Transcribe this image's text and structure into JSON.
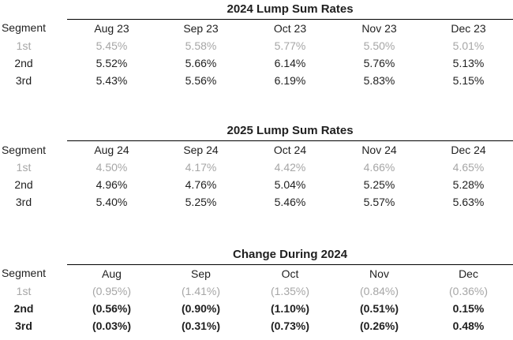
{
  "page": {
    "background": "#ffffff",
    "text_color": "#1f1f1f",
    "muted_row_color": "#a6a6a6",
    "rule_color": "#000000"
  },
  "tables": [
    {
      "title": "2024 Lump Sum Rates",
      "segment_header": "Segment",
      "columns": [
        "Aug 23",
        "Sep 23",
        "Oct 23",
        "Nov 23",
        "Dec 23"
      ],
      "rows": [
        {
          "segment": "1st",
          "style": "muted",
          "values": [
            "5.45%",
            "5.58%",
            "5.77%",
            "5.50%",
            "5.01%"
          ]
        },
        {
          "segment": "2nd",
          "style": "normal",
          "values": [
            "5.52%",
            "5.66%",
            "6.14%",
            "5.76%",
            "5.13%"
          ]
        },
        {
          "segment": "3rd",
          "style": "normal",
          "values": [
            "5.43%",
            "5.56%",
            "6.19%",
            "5.83%",
            "5.15%"
          ]
        }
      ]
    },
    {
      "title": "2025 Lump Sum Rates",
      "segment_header": "Segment",
      "columns": [
        "Aug 24",
        "Sep 24",
        "Oct 24",
        "Nov 24",
        "Dec 24"
      ],
      "rows": [
        {
          "segment": "1st",
          "style": "muted",
          "values": [
            "4.50%",
            "4.17%",
            "4.42%",
            "4.66%",
            "4.65%"
          ]
        },
        {
          "segment": "2nd",
          "style": "normal",
          "values": [
            "4.96%",
            "4.76%",
            "5.04%",
            "5.25%",
            "5.28%"
          ]
        },
        {
          "segment": "3rd",
          "style": "normal",
          "values": [
            "5.40%",
            "5.25%",
            "5.46%",
            "5.57%",
            "5.63%"
          ]
        }
      ]
    },
    {
      "title": "Change During 2024",
      "segment_header": "Segment",
      "columns": [
        "Aug",
        "Sep",
        "Oct",
        "Nov",
        "Dec"
      ],
      "rows": [
        {
          "segment": "1st",
          "style": "muted",
          "values": [
            "(0.95%)",
            "(1.41%)",
            "(1.35%)",
            "(0.84%)",
            "(0.36%)"
          ]
        },
        {
          "segment": "2nd",
          "style": "bold",
          "values": [
            "(0.56%)",
            "(0.90%)",
            "(1.10%)",
            "(0.51%)",
            "0.15%"
          ]
        },
        {
          "segment": "3rd",
          "style": "bold",
          "values": [
            "(0.03%)",
            "(0.31%)",
            "(0.73%)",
            "(0.26%)",
            "0.48%"
          ]
        }
      ]
    }
  ]
}
